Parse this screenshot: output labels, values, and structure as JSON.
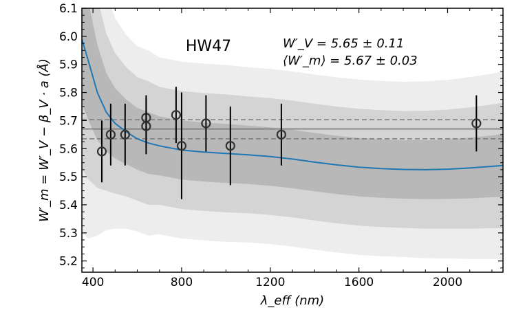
{
  "chart_data": {
    "type": "scatter",
    "title": "HW47",
    "xlabel": "λ_eff (nm)",
    "ylabel": "W′_m = W′_V − β_V · a (Å)",
    "xlim": [
      350,
      2250
    ],
    "ylim": [
      5.16,
      6.1
    ],
    "xticks": [
      400,
      800,
      1200,
      1600,
      2000
    ],
    "yticks": [
      5.2,
      5.3,
      5.4,
      5.5,
      5.6,
      5.7,
      5.8,
      5.9,
      6.0,
      6.1
    ],
    "annotation_line1": "W′_V = 5.65 ± 0.11",
    "annotation_line2": "⟨W′_m⟩ = 5.67 ± 0.03",
    "mean_value": 5.67,
    "mean_band": [
      5.635,
      5.703
    ],
    "points": [
      {
        "x": 440,
        "y": 5.59,
        "err": 0.11
      },
      {
        "x": 480,
        "y": 5.65,
        "err": 0.11
      },
      {
        "x": 545,
        "y": 5.65,
        "err": 0.11
      },
      {
        "x": 640,
        "y": 5.71,
        "err": 0.08
      },
      {
        "x": 640,
        "y": 5.68,
        "err": 0.1
      },
      {
        "x": 775,
        "y": 5.72,
        "err": 0.1
      },
      {
        "x": 800,
        "y": 5.61,
        "err": 0.19
      },
      {
        "x": 910,
        "y": 5.69,
        "err": 0.1
      },
      {
        "x": 1020,
        "y": 5.61,
        "err": 0.14
      },
      {
        "x": 1250,
        "y": 5.65,
        "err": 0.11
      },
      {
        "x": 2130,
        "y": 5.69,
        "err": 0.1
      }
    ],
    "model_curve": {
      "x": [
        350,
        380,
        420,
        460,
        500,
        550,
        600,
        650,
        700,
        800,
        900,
        1000,
        1100,
        1200,
        1300,
        1400,
        1500,
        1600,
        1700,
        1800,
        1900,
        2000,
        2100,
        2200,
        2250
      ],
      "y": [
        5.99,
        5.91,
        5.8,
        5.73,
        5.69,
        5.66,
        5.635,
        5.62,
        5.61,
        5.595,
        5.588,
        5.583,
        5.578,
        5.572,
        5.563,
        5.552,
        5.542,
        5.534,
        5.529,
        5.526,
        5.525,
        5.527,
        5.531,
        5.537,
        5.54
      ]
    },
    "sigma_offsets": {
      "x": [
        350,
        380,
        420,
        460,
        500,
        550,
        600,
        650,
        700,
        800,
        900,
        1000,
        1100,
        1200,
        1300,
        1400,
        1500,
        1600,
        1700,
        1800,
        1900,
        2000,
        2100,
        2200,
        2250
      ],
      "s": [
        0.23,
        0.21,
        0.17,
        0.14,
        0.125,
        0.115,
        0.11,
        0.11,
        0.105,
        0.105,
        0.105,
        0.105,
        0.104,
        0.104,
        0.104,
        0.104,
        0.104,
        0.104,
        0.104,
        0.104,
        0.105,
        0.106,
        0.108,
        0.11,
        0.112
      ]
    },
    "colors": {
      "curve": "#1f77b4",
      "band1": "#b8b8b8",
      "band2": "#d4d4d4",
      "band3": "#ededed",
      "mean_line": "#7f7f7f",
      "points": "#000000"
    }
  }
}
